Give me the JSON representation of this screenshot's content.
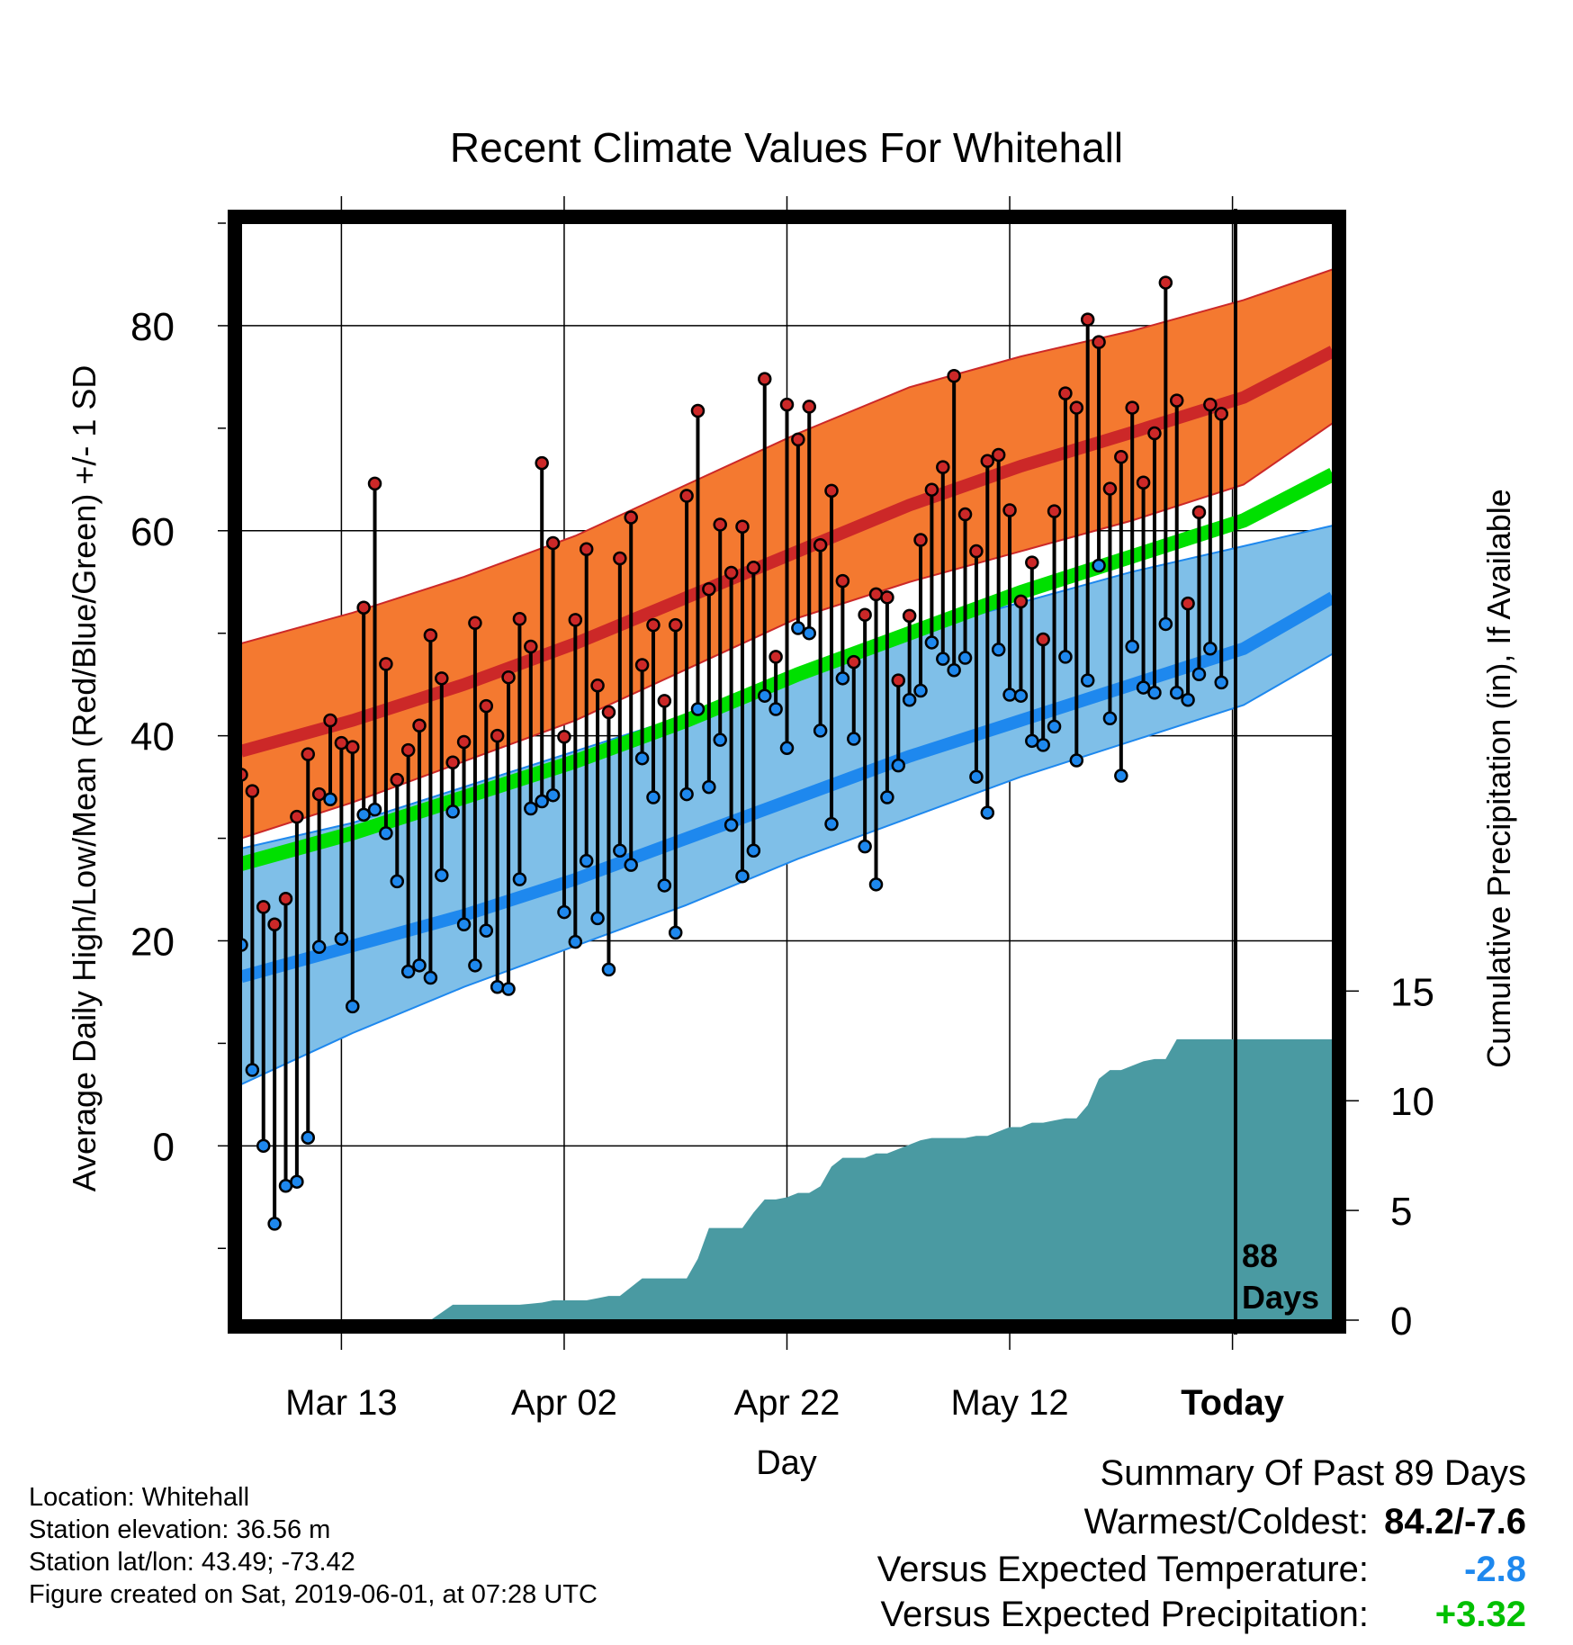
{
  "chart_data": {
    "type": "line",
    "title": "Recent Climate Values For Whitehall",
    "xlabel": "Day",
    "ylabel": "Average Daily High/Low/Mean (Red/Blue/Green) +/- 1 SD",
    "y2label": "Cumulative Precipitation (in), If Available",
    "x_ticks": [
      "Mar 13",
      "Apr 02",
      "Apr 22",
      "May 12",
      "Today"
    ],
    "y_ticks": [
      "0",
      "20",
      "40",
      "60",
      "80"
    ],
    "y2_ticks": [
      "0",
      "5",
      "10",
      "15"
    ],
    "ylim": [
      -17,
      90
    ],
    "y2lim": [
      0,
      50
    ],
    "x_day_range": [
      -89,
      9
    ],
    "today_marker": {
      "day": 0,
      "label_line1": "88",
      "label_line2": "Days"
    },
    "colors": {
      "high": "#cc2828",
      "high_band": "#f47930",
      "low": "#1e88ee",
      "low_band": "#7fbfe8",
      "mean": "#00e000",
      "precip": "#4a9aa2"
    },
    "climatology": {
      "days": [
        -89,
        -79,
        -69,
        -59,
        -49,
        -39,
        -29,
        -19,
        -9,
        1,
        9
      ],
      "high_mean": [
        38.5,
        41.5,
        45.0,
        49.0,
        53.5,
        58.0,
        62.5,
        66.3,
        69.6,
        73.0,
        77.5
      ],
      "high_sd_low": [
        30,
        33.5,
        37.5,
        41.5,
        46.5,
        51.5,
        55,
        58,
        61,
        64.5,
        70.5
      ],
      "high_sd_high": [
        49,
        52,
        55.5,
        59.5,
        64.5,
        69.5,
        74,
        77,
        79.5,
        82.5,
        85.5
      ],
      "low_mean": [
        16.5,
        19.5,
        22.5,
        26,
        30,
        34,
        38,
        41.5,
        45,
        48.5,
        53.5
      ],
      "low_sd_low": [
        6,
        11,
        15.5,
        19.5,
        23.5,
        28,
        32,
        36,
        39.5,
        43,
        48
      ],
      "low_sd_high": [
        29,
        31.5,
        35,
        38.5,
        42,
        46,
        50,
        53,
        56,
        58.5,
        60.5
      ],
      "mean": [
        27.5,
        30.5,
        34,
        37.5,
        41.5,
        46,
        50,
        54,
        57.5,
        61,
        65.5
      ]
    },
    "series": [
      {
        "name": "High",
        "values": [
          36.2,
          34.6,
          23.3,
          21.6,
          24.1,
          32.1,
          38.2,
          34.3,
          41.5,
          39.3,
          38.9,
          52.5,
          64.6,
          47.0,
          35.7,
          38.6,
          41.0,
          49.8,
          45.6,
          37.4,
          39.4,
          51.0,
          42.9,
          40.0,
          45.7,
          51.4,
          48.7,
          66.6,
          58.8,
          39.9,
          51.3,
          58.2,
          44.9,
          42.3,
          57.3,
          61.3,
          46.9,
          50.8,
          43.4,
          50.8,
          63.4,
          71.7,
          54.3,
          60.6,
          55.9,
          60.4,
          56.4,
          74.8,
          47.7,
          72.3,
          68.9,
          72.1,
          58.6,
          63.9,
          55.1,
          47.2,
          51.8,
          53.8,
          53.5,
          45.4,
          51.7,
          59.1,
          64.0,
          66.2,
          75.1,
          61.6,
          58.0,
          66.8,
          67.4,
          62.0,
          53.1,
          56.9,
          49.4,
          61.9,
          73.4,
          72.0,
          80.6,
          78.4,
          64.1,
          67.2,
          72.0,
          64.7,
          69.5,
          84.2,
          72.7,
          52.9,
          61.8,
          72.3,
          71.4
        ]
      },
      {
        "name": "Low",
        "values": [
          19.6,
          7.4,
          0.0,
          -7.6,
          -3.9,
          -3.5,
          0.8,
          19.4,
          33.8,
          20.2,
          13.6,
          32.3,
          32.8,
          30.5,
          25.8,
          17.0,
          17.6,
          16.4,
          26.4,
          32.6,
          21.6,
          17.6,
          21.0,
          15.5,
          15.3,
          26.0,
          32.9,
          33.6,
          34.2,
          22.8,
          19.9,
          27.8,
          22.2,
          17.2,
          28.8,
          27.4,
          37.8,
          34.0,
          25.4,
          20.8,
          34.3,
          42.6,
          35.0,
          39.6,
          31.3,
          26.3,
          28.8,
          43.9,
          42.6,
          38.8,
          50.5,
          50.0,
          40.5,
          31.4,
          45.6,
          39.7,
          29.2,
          25.5,
          34.0,
          37.1,
          43.5,
          44.4,
          49.1,
          47.5,
          46.4,
          47.6,
          36.0,
          32.5,
          48.4,
          44.0,
          43.9,
          39.5,
          39.1,
          40.9,
          47.7,
          37.6,
          45.4,
          56.6,
          41.7,
          36.1,
          48.7,
          44.7,
          44.2,
          50.9,
          44.2,
          43.5,
          46.0,
          48.5,
          45.2
        ]
      },
      {
        "name": "Cumulative Precipitation",
        "values": [
          0,
          0,
          0,
          0,
          0,
          0,
          0,
          0,
          0,
          0,
          0,
          0,
          0,
          0,
          0,
          0,
          0,
          0,
          0.35,
          0.7,
          0.7,
          0.7,
          0.7,
          0.7,
          0.7,
          0.7,
          0.75,
          0.8,
          0.9,
          0.9,
          0.9,
          0.9,
          1.0,
          1.1,
          1.1,
          1.5,
          1.9,
          1.9,
          1.9,
          1.9,
          1.9,
          2.8,
          4.2,
          4.2,
          4.2,
          4.2,
          4.9,
          5.5,
          5.5,
          5.6,
          5.8,
          5.8,
          6.1,
          7.0,
          7.4,
          7.4,
          7.4,
          7.6,
          7.6,
          7.8,
          8.0,
          8.2,
          8.3,
          8.3,
          8.3,
          8.3,
          8.4,
          8.4,
          8.6,
          8.8,
          8.8,
          9.0,
          9.0,
          9.1,
          9.2,
          9.2,
          9.8,
          11.0,
          11.4,
          11.4,
          11.6,
          11.8,
          11.9,
          11.9,
          12.8,
          12.8,
          12.8,
          12.8,
          12.8,
          12.8,
          12.8,
          12.8,
          12.8,
          12.8,
          12.8,
          12.8,
          12.8,
          12.8,
          12.8
        ]
      }
    ]
  },
  "info": {
    "location": "Location: Whitehall",
    "elevation": "Station elevation: 36.56 m",
    "latlon": "Station lat/lon: 43.49; -73.42",
    "created": "Figure created on Sat, 2019-06-01, at 07:28 UTC"
  },
  "summary": {
    "title": "Summary Of Past 89 Days",
    "warmest_label": "Warmest/Coldest:",
    "warmest_value": "84.2/-7.6",
    "temp_label": "Versus Expected Temperature:",
    "temp_value": "-2.8",
    "temp_color": "#1e88ee",
    "precip_label": "Versus Expected Precipitation:",
    "precip_value": "+3.32",
    "precip_color": "#00c000"
  }
}
